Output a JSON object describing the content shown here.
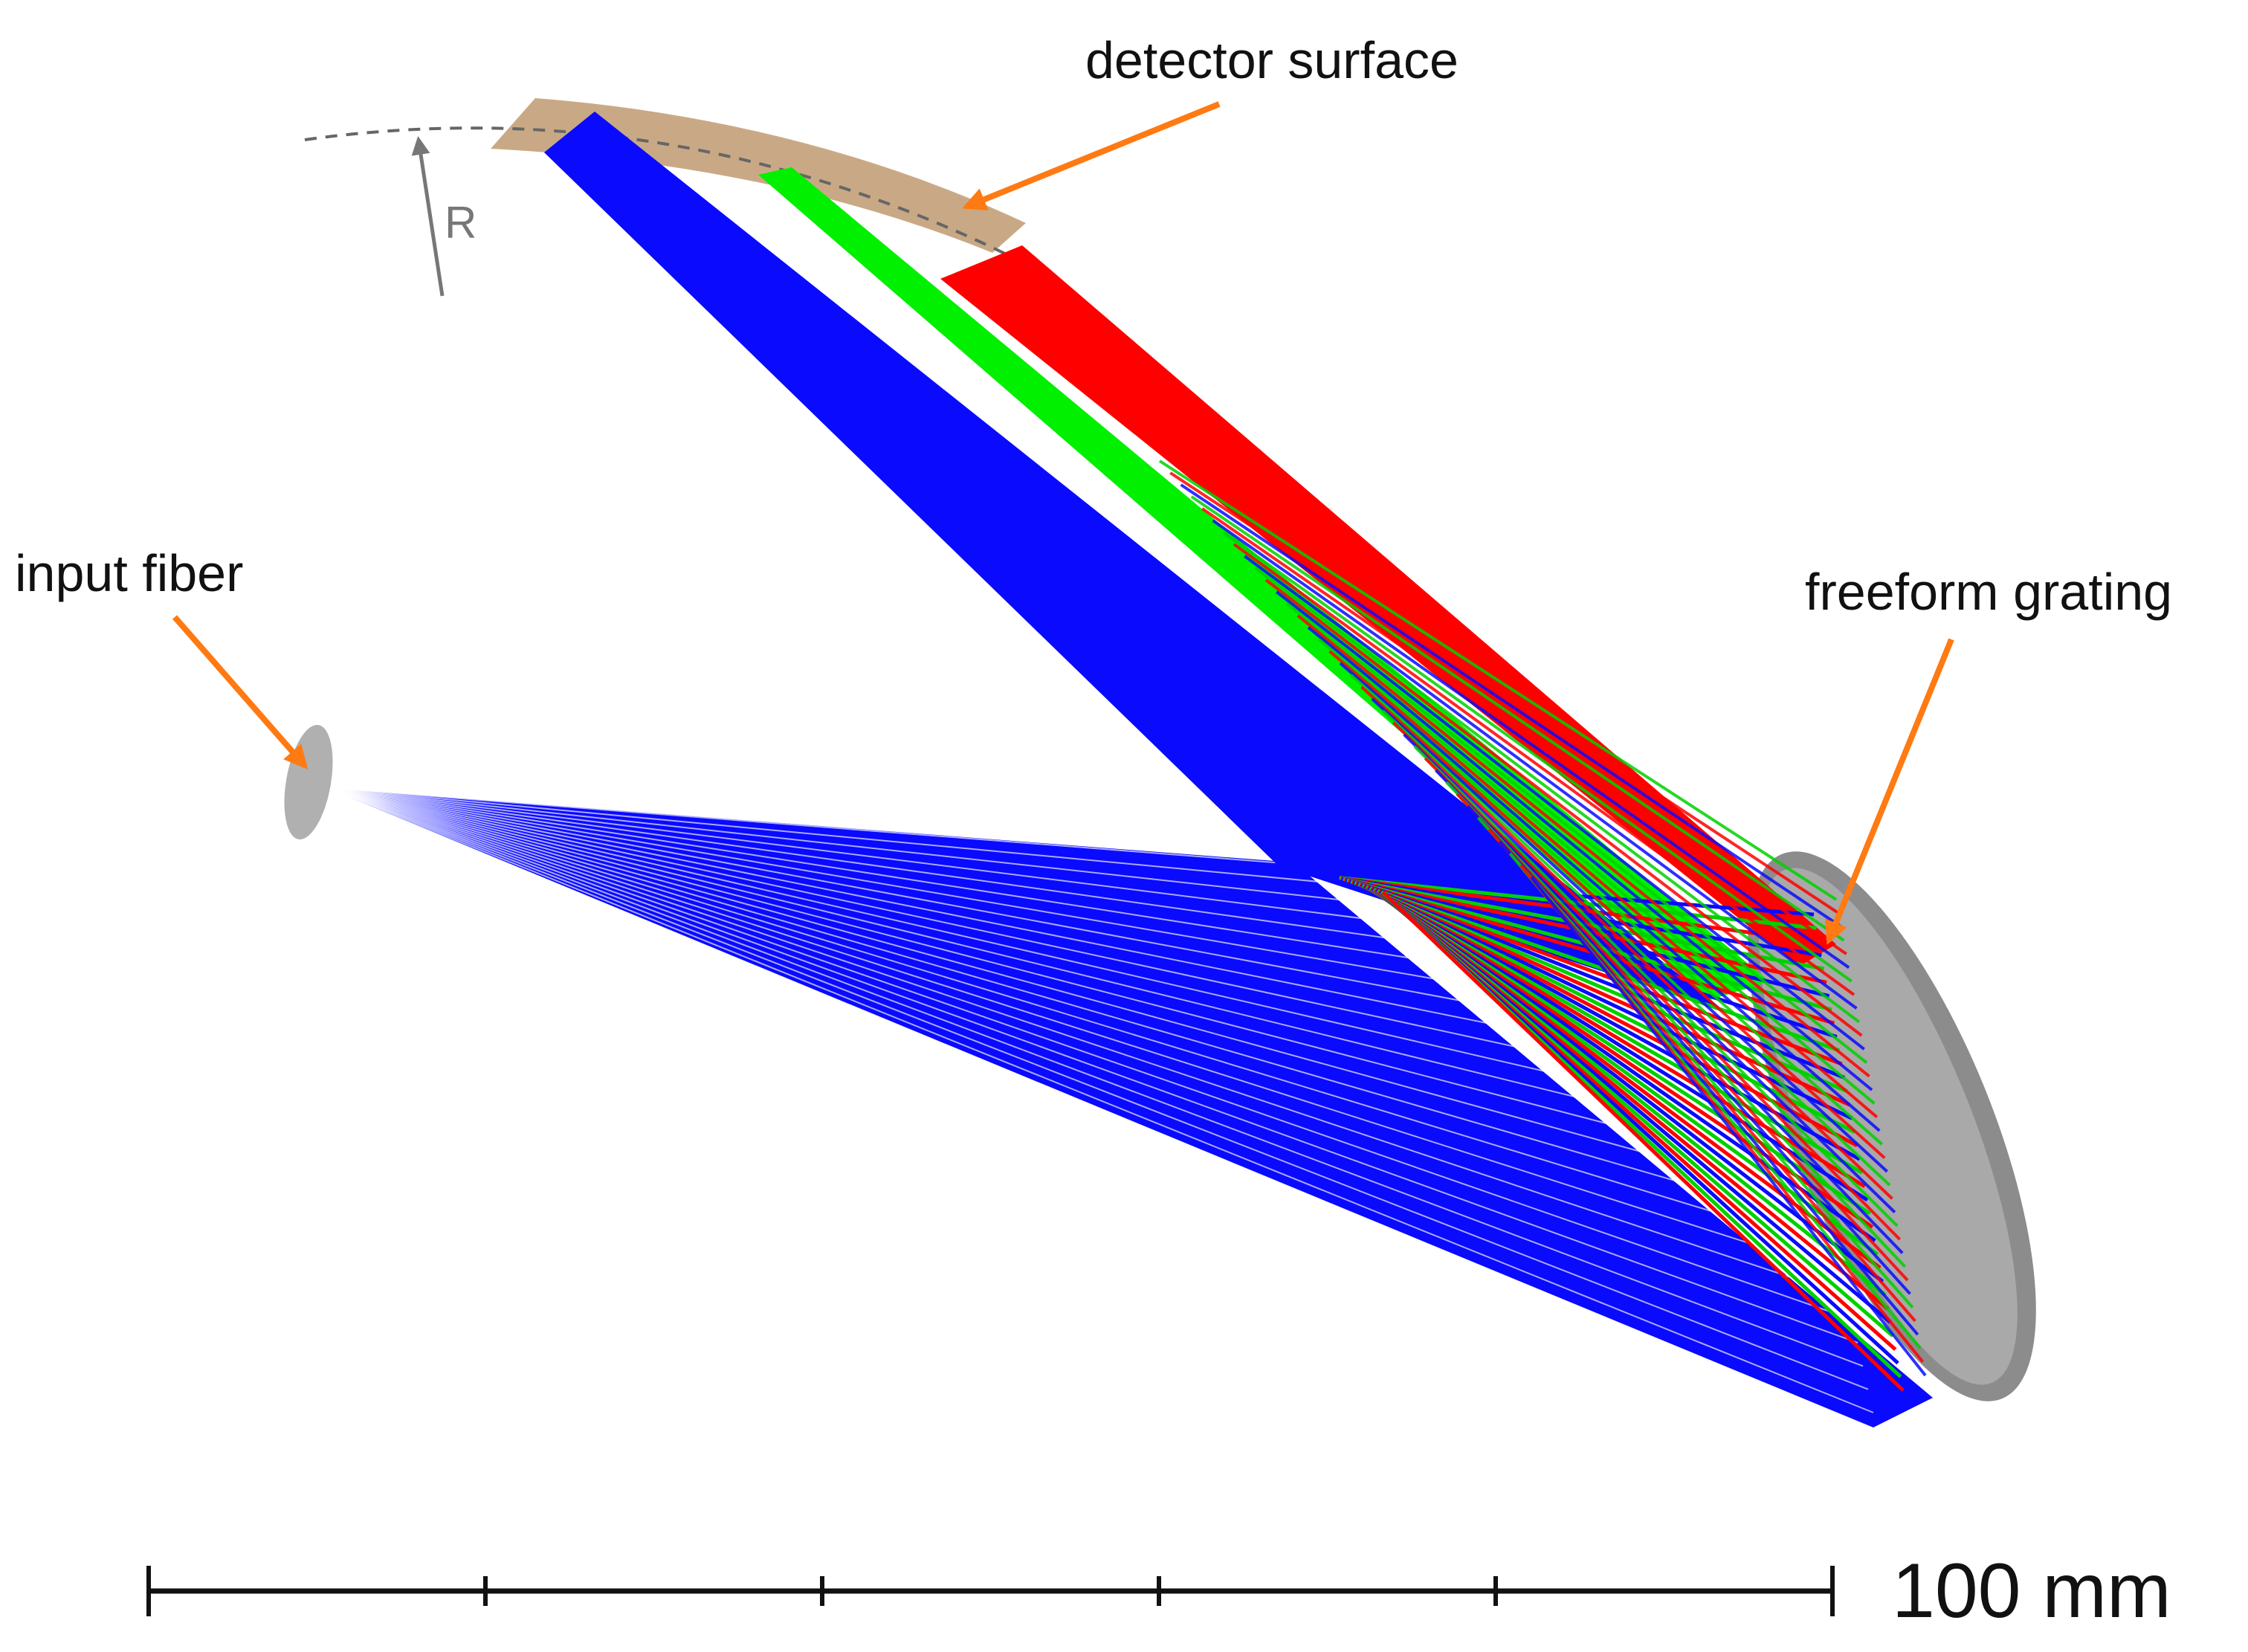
{
  "labels": {
    "detector": "detector surface",
    "fiber": "input fiber",
    "grating": "freeform grating",
    "radius": "R",
    "scale": "100 mm"
  },
  "scale_bar": {
    "length_mm": 100,
    "divisions": 5
  },
  "colors": {
    "ray_blue": "#0a0aff",
    "ray_green": "#00f000",
    "ray_red": "#ff0000",
    "detector_fill": "#c9a985",
    "grating_fill": "#8c8c8c",
    "fiber_fill": "#b0b0b0",
    "callout_arrow": "#ff7a12",
    "radius_arrow": "#777777",
    "scale_bar": "#111111"
  }
}
